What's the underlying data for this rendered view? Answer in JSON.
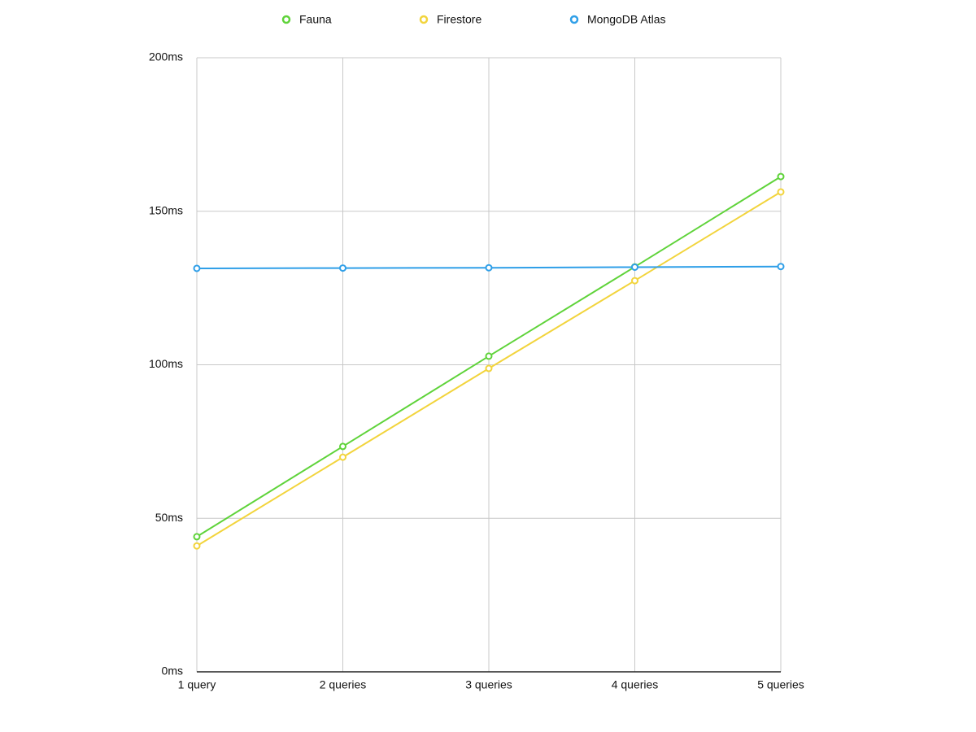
{
  "chart_data": {
    "type": "line",
    "categories": [
      "1 query",
      "2 queries",
      "3 queries",
      "4 queries",
      "5 queries"
    ],
    "series": [
      {
        "name": "Fauna",
        "color": "#5fd33a",
        "values": [
          44,
          73.4,
          102.8,
          131.9,
          161.3
        ]
      },
      {
        "name": "Firestore",
        "color": "#f2d43c",
        "values": [
          41,
          69.9,
          98.8,
          127.4,
          156.3
        ]
      },
      {
        "name": "MongoDB Atlas",
        "color": "#2f9fe8",
        "values": [
          131.4,
          131.5,
          131.6,
          131.8,
          132
        ]
      }
    ],
    "ylim": [
      0,
      200
    ],
    "yticks": [
      {
        "value": 0,
        "label": "0ms"
      },
      {
        "value": 50,
        "label": "50ms"
      },
      {
        "value": 100,
        "label": "100ms"
      },
      {
        "value": 150,
        "label": "150ms"
      },
      {
        "value": 200,
        "label": "200ms"
      }
    ],
    "grid": true,
    "legend": "top"
  }
}
